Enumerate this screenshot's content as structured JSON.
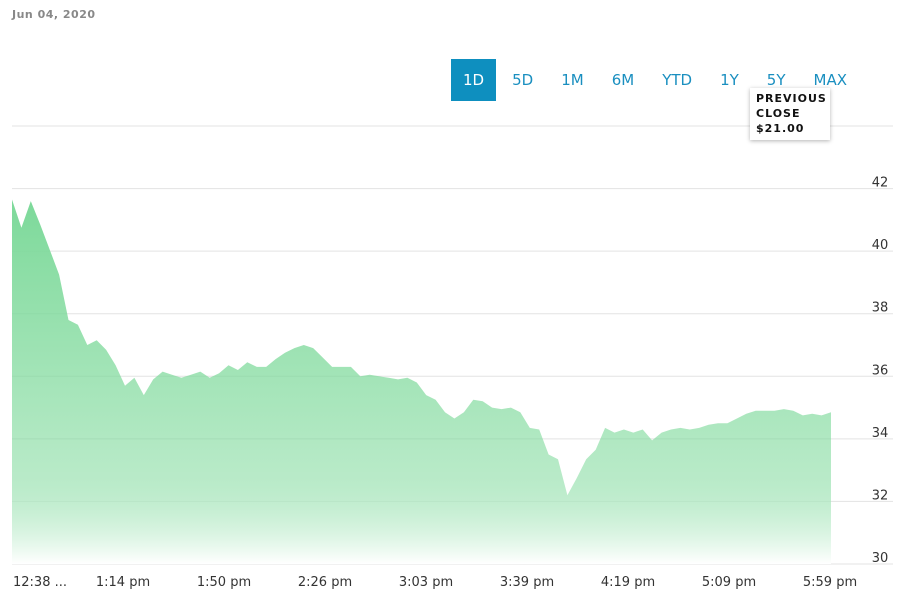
{
  "date": "Jun 04, 2020",
  "ranges": [
    "1D",
    "5D",
    "1M",
    "6M",
    "YTD",
    "1Y",
    "5Y",
    "MAX"
  ],
  "selected_range": "1D",
  "tooltip": {
    "label": "PREVIOUS CLOSE",
    "value": "$21.00"
  },
  "chart_data": {
    "type": "area",
    "color": "#7dd99a",
    "values": [
      41.65,
      40.75,
      41.6,
      40.85,
      40.05,
      39.25,
      37.8,
      37.65,
      37.0,
      37.15,
      36.85,
      36.35,
      35.7,
      35.95,
      35.4,
      35.9,
      36.15,
      36.05,
      35.95,
      36.05,
      36.15,
      35.95,
      36.1,
      36.35,
      36.2,
      36.45,
      36.3,
      36.3,
      36.55,
      36.75,
      36.9,
      37.0,
      36.9,
      36.6,
      36.3,
      36.3,
      36.3,
      36.0,
      36.05,
      36.0,
      35.95,
      35.9,
      35.95,
      35.8,
      35.4,
      35.25,
      34.85,
      34.65,
      34.85,
      35.25,
      35.2,
      35.0,
      34.95,
      35.0,
      34.85,
      34.35,
      34.3,
      33.5,
      33.35,
      32.2,
      32.75,
      33.35,
      33.65,
      34.35,
      34.2,
      34.3,
      34.2,
      34.3,
      33.95,
      34.2,
      34.3,
      34.35,
      34.3,
      34.35,
      34.45,
      34.5,
      34.5,
      34.65,
      34.8,
      34.9,
      34.9,
      34.9,
      34.95,
      34.9,
      34.75,
      34.8,
      34.75,
      34.85
    ],
    "xtick_labels": [
      "12:38 ...",
      "1:14 pm",
      "1:50 pm",
      "2:26 pm",
      "3:03 pm",
      "3:39 pm",
      "4:19 pm",
      "5:09 pm",
      "5:59 pm"
    ],
    "ylim": [
      30,
      44
    ],
    "yticks": [
      30,
      32,
      34,
      36,
      38,
      40,
      42
    ],
    "grid": true
  }
}
